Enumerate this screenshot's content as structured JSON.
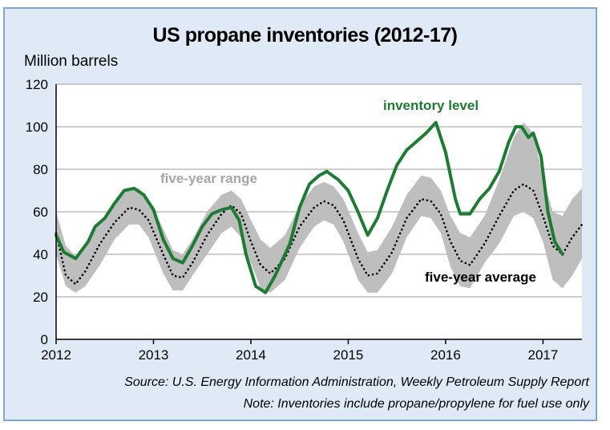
{
  "title": "US propane inventories (2012-17)",
  "ylabel": "Million barrels",
  "source": "Source: U.S. Energy Information Administration, Weekly Petroleum Supply Report",
  "note": "Note: Inventories include propane/propylene for fuel use only",
  "colors": {
    "frame_bg": "#dfeaf6",
    "frame_border": "#7fa7d3",
    "inventory": "#1e7b34",
    "range": "#bebebe",
    "range_label": "#a6a6a6",
    "average": "#000000"
  },
  "chart_data": {
    "type": "line",
    "ylim": [
      0,
      120
    ],
    "xlim": [
      2012,
      2017.4
    ],
    "y_ticks": [
      "0",
      "20",
      "40",
      "60",
      "80",
      "100",
      "120"
    ],
    "x_ticks": [
      "2012",
      "2013",
      "2014",
      "2015",
      "2016",
      "2017"
    ],
    "grid": true,
    "annotations": {
      "inventory": "inventory level",
      "range": "five-year range",
      "average": "five-year average"
    },
    "inventory_level": [
      [
        2012.0,
        49
      ],
      [
        2012.08,
        41
      ],
      [
        2012.2,
        38
      ],
      [
        2012.33,
        46
      ],
      [
        2012.4,
        53
      ],
      [
        2012.5,
        57
      ],
      [
        2012.6,
        64
      ],
      [
        2012.7,
        70
      ],
      [
        2012.8,
        71
      ],
      [
        2012.9,
        68
      ],
      [
        2013.0,
        61
      ],
      [
        2013.1,
        47
      ],
      [
        2013.2,
        38
      ],
      [
        2013.3,
        36
      ],
      [
        2013.4,
        44
      ],
      [
        2013.5,
        53
      ],
      [
        2013.6,
        59
      ],
      [
        2013.7,
        61
      ],
      [
        2013.8,
        62
      ],
      [
        2013.88,
        56
      ],
      [
        2013.95,
        40
      ],
      [
        2014.05,
        25
      ],
      [
        2014.15,
        22
      ],
      [
        2014.25,
        30
      ],
      [
        2014.4,
        45
      ],
      [
        2014.5,
        62
      ],
      [
        2014.6,
        73
      ],
      [
        2014.7,
        77
      ],
      [
        2014.78,
        79
      ],
      [
        2014.9,
        75
      ],
      [
        2015.0,
        70
      ],
      [
        2015.1,
        60
      ],
      [
        2015.2,
        49
      ],
      [
        2015.3,
        57
      ],
      [
        2015.4,
        70
      ],
      [
        2015.5,
        82
      ],
      [
        2015.6,
        89
      ],
      [
        2015.7,
        93
      ],
      [
        2015.8,
        97
      ],
      [
        2015.9,
        102
      ],
      [
        2016.0,
        88
      ],
      [
        2016.1,
        66
      ],
      [
        2016.15,
        59
      ],
      [
        2016.25,
        59
      ],
      [
        2016.35,
        66
      ],
      [
        2016.45,
        71
      ],
      [
        2016.55,
        79
      ],
      [
        2016.65,
        93
      ],
      [
        2016.72,
        100
      ],
      [
        2016.78,
        100
      ],
      [
        2016.85,
        95
      ],
      [
        2016.9,
        97
      ],
      [
        2016.98,
        86
      ],
      [
        2017.05,
        60
      ],
      [
        2017.12,
        46
      ],
      [
        2017.2,
        40
      ]
    ],
    "five_year_average": [
      [
        2012.0,
        50
      ],
      [
        2012.1,
        30
      ],
      [
        2012.2,
        26
      ],
      [
        2012.3,
        32
      ],
      [
        2012.45,
        45
      ],
      [
        2012.6,
        55
      ],
      [
        2012.75,
        62
      ],
      [
        2012.85,
        61
      ],
      [
        2012.95,
        56
      ],
      [
        2013.1,
        40
      ],
      [
        2013.2,
        30
      ],
      [
        2013.3,
        29
      ],
      [
        2013.4,
        36
      ],
      [
        2013.55,
        49
      ],
      [
        2013.7,
        59
      ],
      [
        2013.8,
        63
      ],
      [
        2013.9,
        59
      ],
      [
        2014.0,
        46
      ],
      [
        2014.1,
        35
      ],
      [
        2014.2,
        31
      ],
      [
        2014.35,
        38
      ],
      [
        2014.5,
        53
      ],
      [
        2014.65,
        62
      ],
      [
        2014.75,
        65
      ],
      [
        2014.85,
        63
      ],
      [
        2014.95,
        56
      ],
      [
        2015.1,
        38
      ],
      [
        2015.2,
        30
      ],
      [
        2015.3,
        31
      ],
      [
        2015.45,
        41
      ],
      [
        2015.6,
        57
      ],
      [
        2015.75,
        66
      ],
      [
        2015.85,
        65
      ],
      [
        2015.95,
        59
      ],
      [
        2016.05,
        46
      ],
      [
        2016.15,
        37
      ],
      [
        2016.25,
        35
      ],
      [
        2016.4,
        45
      ],
      [
        2016.55,
        58
      ],
      [
        2016.7,
        70
      ],
      [
        2016.8,
        73
      ],
      [
        2016.9,
        70
      ],
      [
        2017.0,
        58
      ],
      [
        2017.1,
        44
      ],
      [
        2017.2,
        40
      ],
      [
        2017.3,
        48
      ],
      [
        2017.4,
        54
      ]
    ],
    "five_year_range": [
      [
        2012.0,
        60,
        40
      ],
      [
        2012.1,
        44,
        25
      ],
      [
        2012.2,
        39,
        22
      ],
      [
        2012.3,
        44,
        25
      ],
      [
        2012.45,
        55,
        35
      ],
      [
        2012.6,
        64,
        47
      ],
      [
        2012.75,
        71,
        54
      ],
      [
        2012.85,
        71,
        54
      ],
      [
        2012.95,
        66,
        48
      ],
      [
        2013.1,
        52,
        31
      ],
      [
        2013.2,
        42,
        23
      ],
      [
        2013.3,
        40,
        23
      ],
      [
        2013.4,
        47,
        30
      ],
      [
        2013.55,
        60,
        40
      ],
      [
        2013.7,
        68,
        50
      ],
      [
        2013.8,
        70,
        53
      ],
      [
        2013.9,
        66,
        48
      ],
      [
        2014.0,
        56,
        36
      ],
      [
        2014.1,
        47,
        24
      ],
      [
        2014.2,
        43,
        22
      ],
      [
        2014.35,
        49,
        28
      ],
      [
        2014.5,
        63,
        43
      ],
      [
        2014.65,
        72,
        53
      ],
      [
        2014.75,
        74,
        56
      ],
      [
        2014.85,
        72,
        54
      ],
      [
        2014.95,
        66,
        46
      ],
      [
        2015.1,
        50,
        28
      ],
      [
        2015.2,
        41,
        22
      ],
      [
        2015.3,
        42,
        22
      ],
      [
        2015.45,
        53,
        31
      ],
      [
        2015.6,
        68,
        48
      ],
      [
        2015.75,
        77,
        58
      ],
      [
        2015.85,
        76,
        57
      ],
      [
        2015.95,
        70,
        50
      ],
      [
        2016.05,
        58,
        34
      ],
      [
        2016.15,
        50,
        25
      ],
      [
        2016.25,
        48,
        24
      ],
      [
        2016.4,
        58,
        36
      ],
      [
        2016.55,
        75,
        45
      ],
      [
        2016.7,
        95,
        58
      ],
      [
        2016.8,
        102,
        60
      ],
      [
        2016.9,
        97,
        57
      ],
      [
        2017.0,
        76,
        46
      ],
      [
        2017.1,
        60,
        28
      ],
      [
        2017.2,
        58,
        24
      ],
      [
        2017.3,
        66,
        30
      ],
      [
        2017.4,
        71,
        38
      ]
    ]
  }
}
